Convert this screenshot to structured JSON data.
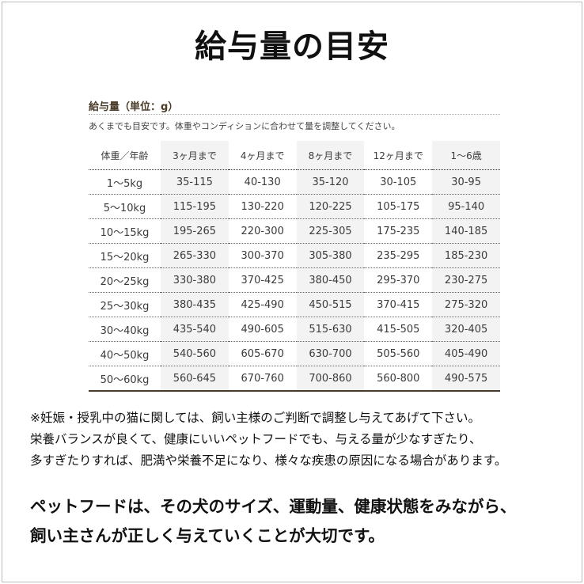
{
  "title": "給与量の目安",
  "section": {
    "title": "給与量（単位：g）",
    "subtitle": "あくまでも目安です。体重やコンディションに合わせて量を調整してください。"
  },
  "table": {
    "headers": [
      "体重／年齢",
      "3ヶ月まで",
      "4ヶ月まで",
      "8ヶ月まで",
      "12ヶ月まで",
      "1〜6歳"
    ],
    "rows": [
      [
        "1〜5kg",
        "35-115",
        "40-130",
        "35-120",
        "30-105",
        "30-95"
      ],
      [
        "5〜10kg",
        "115-195",
        "130-220",
        "120-225",
        "105-175",
        "95-140"
      ],
      [
        "10〜15kg",
        "195-265",
        "220-300",
        "225-305",
        "175-235",
        "140-185"
      ],
      [
        "15〜20kg",
        "265-330",
        "300-370",
        "305-380",
        "235-295",
        "185-230"
      ],
      [
        "20〜25kg",
        "330-380",
        "370-425",
        "380-450",
        "295-370",
        "230-275"
      ],
      [
        "25〜30kg",
        "380-435",
        "425-490",
        "450-515",
        "370-415",
        "275-320"
      ],
      [
        "30〜40kg",
        "435-540",
        "490-605",
        "515-630",
        "415-505",
        "320-405"
      ],
      [
        "40〜50kg",
        "540-560",
        "605-670",
        "630-700",
        "505-560",
        "405-490"
      ],
      [
        "50〜60kg",
        "560-645",
        "670-760",
        "700-860",
        "560-800",
        "490-575"
      ]
    ]
  },
  "notes": [
    "※妊娠・授乳中の猫に関しては、飼い主様のご判断で調整し与えてあげて下さい。",
    "栄養バランスが良くて、健康にいいペットフードでも、与える量が少なすぎたり、",
    "多すぎたりすれば、肥満や栄養不足になり、様々な疾患の原因になる場合があります。"
  ],
  "emphasis": [
    "ペットフードは、その犬のサイズ、運動量、健康状態をみながら、",
    "飼い主さんが正しく与えていくことが大切です。"
  ]
}
